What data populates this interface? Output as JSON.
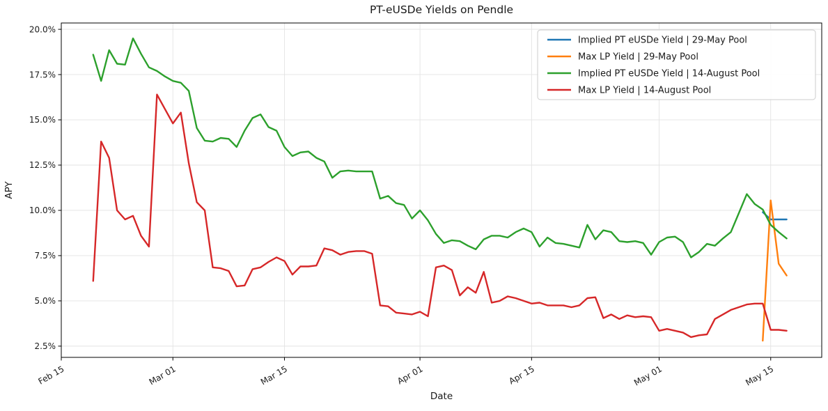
{
  "chart_data": {
    "type": "line",
    "title": "PT-eUSDe Yields on Pendle",
    "xlabel": "Date",
    "ylabel": "APY",
    "x_tick_labels": [
      "Feb 15",
      "Mar 01",
      "Mar 15",
      "Apr 01",
      "Apr 15",
      "May 01",
      "May 15"
    ],
    "y_ticks": [
      2.5,
      5.0,
      7.5,
      10.0,
      12.5,
      15.0,
      17.5,
      20.0
    ],
    "y_tick_labels": [
      "2.5%",
      "5.0%",
      "7.5%",
      "10.0%",
      "12.5%",
      "15.0%",
      "17.5%",
      "20.0%"
    ],
    "ylim": [
      1.88,
      20.35
    ],
    "grid": true,
    "legend_position": "upper right",
    "series": [
      {
        "name": "Implied PT eUSDe Yield | 29-May Pool",
        "color": "#1f77b4",
        "dates": [
          "May 14",
          "May 15",
          "May 16",
          "May 17"
        ],
        "values": [
          9.9,
          9.5,
          9.5,
          9.5
        ]
      },
      {
        "name": "Max LP Yield | 29-May Pool",
        "color": "#ff7f0e",
        "dates": [
          "May 14",
          "May 15",
          "May 16",
          "May 17"
        ],
        "values": [
          2.8,
          10.55,
          7.05,
          6.4
        ]
      },
      {
        "name": "Implied PT eUSDe Yield | 14-August Pool",
        "color": "#2ca02c",
        "dates": [
          "Feb 19",
          "Feb 20",
          "Feb 21",
          "Feb 22",
          "Feb 23",
          "Feb 24",
          "Feb 25",
          "Feb 26",
          "Feb 27",
          "Feb 28",
          "Mar 01",
          "Mar 02",
          "Mar 03",
          "Mar 04",
          "Mar 05",
          "Mar 06",
          "Mar 07",
          "Mar 08",
          "Mar 09",
          "Mar 10",
          "Mar 11",
          "Mar 12",
          "Mar 13",
          "Mar 14",
          "Mar 15",
          "Mar 16",
          "Mar 17",
          "Mar 18",
          "Mar 19",
          "Mar 20",
          "Mar 21",
          "Mar 22",
          "Mar 23",
          "Mar 24",
          "Mar 25",
          "Mar 26",
          "Mar 27",
          "Mar 28",
          "Mar 29",
          "Mar 30",
          "Mar 31",
          "Apr 01",
          "Apr 02",
          "Apr 03",
          "Apr 04",
          "Apr 05",
          "Apr 06",
          "Apr 07",
          "Apr 08",
          "Apr 09",
          "Apr 10",
          "Apr 11",
          "Apr 12",
          "Apr 13",
          "Apr 14",
          "Apr 15",
          "Apr 16",
          "Apr 17",
          "Apr 18",
          "Apr 19",
          "Apr 20",
          "Apr 21",
          "Apr 22",
          "Apr 23",
          "Apr 24",
          "Apr 25",
          "Apr 26",
          "Apr 27",
          "Apr 28",
          "Apr 29",
          "Apr 30",
          "May 01",
          "May 02",
          "May 03",
          "May 04",
          "May 05",
          "May 06",
          "May 07",
          "May 08",
          "May 09",
          "May 10",
          "May 11",
          "May 12",
          "May 13",
          "May 14",
          "May 15",
          "May 16",
          "May 17"
        ],
        "values": [
          18.6,
          17.15,
          18.85,
          18.1,
          18.05,
          19.5,
          18.65,
          17.9,
          17.7,
          17.4,
          17.15,
          17.05,
          16.6,
          14.55,
          13.85,
          13.8,
          14.0,
          13.95,
          13.5,
          14.4,
          15.1,
          15.3,
          14.6,
          14.4,
          13.5,
          13.0,
          13.2,
          13.25,
          12.9,
          12.7,
          11.8,
          12.15,
          12.2,
          12.15,
          12.15,
          12.15,
          10.65,
          10.8,
          10.4,
          10.3,
          9.55,
          10.0,
          9.45,
          8.7,
          8.2,
          8.35,
          8.3,
          8.05,
          7.85,
          8.4,
          8.6,
          8.6,
          8.5,
          8.8,
          9.0,
          8.8,
          8.0,
          8.5,
          8.2,
          8.15,
          8.05,
          7.95,
          9.2,
          8.4,
          8.9,
          8.8,
          8.3,
          8.25,
          8.3,
          8.2,
          7.55,
          8.25,
          8.5,
          8.55,
          8.25,
          7.4,
          7.7,
          8.15,
          8.05,
          8.45,
          8.8,
          9.85,
          10.9,
          10.35,
          10.05,
          9.2,
          8.8,
          8.45
        ]
      },
      {
        "name": "Max LP Yield | 14-August Pool",
        "color": "#d62728",
        "dates": [
          "Feb 19",
          "Feb 20",
          "Feb 21",
          "Feb 22",
          "Feb 23",
          "Feb 24",
          "Feb 25",
          "Feb 26",
          "Feb 27",
          "Feb 28",
          "Mar 01",
          "Mar 02",
          "Mar 03",
          "Mar 04",
          "Mar 05",
          "Mar 06",
          "Mar 07",
          "Mar 08",
          "Mar 09",
          "Mar 10",
          "Mar 11",
          "Mar 12",
          "Mar 13",
          "Mar 14",
          "Mar 15",
          "Mar 16",
          "Mar 17",
          "Mar 18",
          "Mar 19",
          "Mar 20",
          "Mar 21",
          "Mar 22",
          "Mar 23",
          "Mar 24",
          "Mar 25",
          "Mar 26",
          "Mar 27",
          "Mar 28",
          "Mar 29",
          "Mar 30",
          "Mar 31",
          "Apr 01",
          "Apr 02",
          "Apr 03",
          "Apr 04",
          "Apr 05",
          "Apr 06",
          "Apr 07",
          "Apr 08",
          "Apr 09",
          "Apr 10",
          "Apr 11",
          "Apr 12",
          "Apr 13",
          "Apr 14",
          "Apr 15",
          "Apr 16",
          "Apr 17",
          "Apr 18",
          "Apr 19",
          "Apr 20",
          "Apr 21",
          "Apr 22",
          "Apr 23",
          "Apr 24",
          "Apr 25",
          "Apr 26",
          "Apr 27",
          "Apr 28",
          "Apr 29",
          "Apr 30",
          "May 01",
          "May 02",
          "May 03",
          "May 04",
          "May 05",
          "May 06",
          "May 07",
          "May 08",
          "May 09",
          "May 10",
          "May 11",
          "May 12",
          "May 13",
          "May 14",
          "May 15",
          "May 16",
          "May 17"
        ],
        "values": [
          6.1,
          13.8,
          12.9,
          10.0,
          9.5,
          9.7,
          8.6,
          8.0,
          16.4,
          15.6,
          14.8,
          15.4,
          12.6,
          10.45,
          10.0,
          6.85,
          6.8,
          6.65,
          5.8,
          5.85,
          6.75,
          6.85,
          7.15,
          7.4,
          7.2,
          6.45,
          6.9,
          6.9,
          6.95,
          7.9,
          7.8,
          7.55,
          7.7,
          7.75,
          7.75,
          7.6,
          4.75,
          4.7,
          4.35,
          4.3,
          4.25,
          4.4,
          4.15,
          6.85,
          6.95,
          6.7,
          5.3,
          5.75,
          5.45,
          6.6,
          4.9,
          5.0,
          5.25,
          5.15,
          5.0,
          4.85,
          4.9,
          4.75,
          4.75,
          4.75,
          4.65,
          4.75,
          5.15,
          5.2,
          4.05,
          4.25,
          4.0,
          4.2,
          4.1,
          4.15,
          4.1,
          3.35,
          3.45,
          3.35,
          3.25,
          3.0,
          3.1,
          3.15,
          4.0,
          4.25,
          4.5,
          4.65,
          4.8,
          4.85,
          4.85,
          3.4,
          3.4,
          3.35
        ]
      }
    ]
  }
}
